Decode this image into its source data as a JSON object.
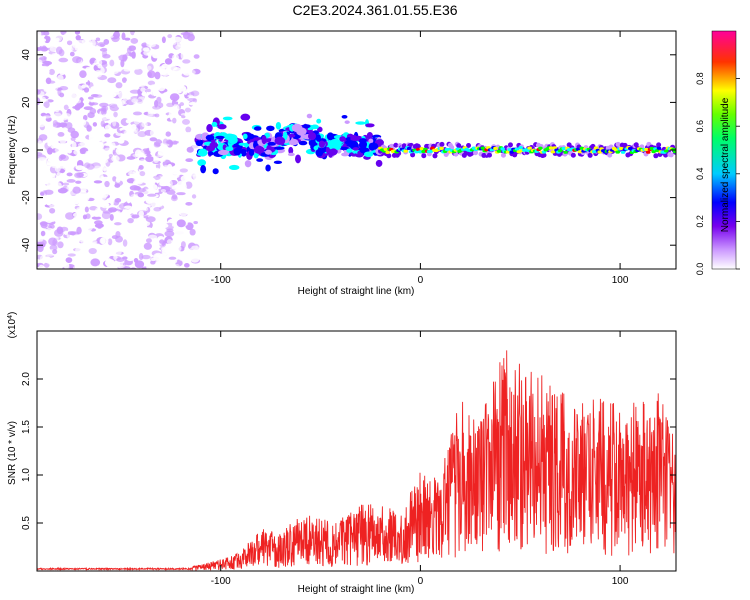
{
  "figure": {
    "title": "C2E3.2024.361.01.55.E36"
  },
  "chart_data": [
    {
      "type": "heatmap",
      "title": "",
      "xlabel": "Height of straight line (km)",
      "ylabel": "Frequency (Hz)",
      "xlim": [
        -192,
        128
      ],
      "ylim": [
        -50,
        50
      ],
      "xticks": [
        -100,
        0,
        100
      ],
      "yticks": [
        -40,
        -20,
        0,
        20,
        40
      ],
      "colorbar": {
        "label": "Normalized spectral amplitude",
        "range": [
          0,
          1
        ],
        "ticks": [
          0.0,
          0.2,
          0.4,
          0.6,
          0.8
        ],
        "colormap": [
          "#ffffff",
          "#cc99ff",
          "#6600ee",
          "#0000ff",
          "#00ffff",
          "#00ff00",
          "#ffff00",
          "#ff0000",
          "#ff0099"
        ]
      },
      "regions": [
        {
          "x": [
            -192,
            -112
          ],
          "y": [
            -50,
            50
          ],
          "amplitude": "low-scattered"
        },
        {
          "x": [
            -112,
            -20
          ],
          "y": [
            -18,
            14
          ],
          "amplitude": "medium"
        },
        {
          "x": [
            -20,
            128
          ],
          "y": [
            -2,
            2
          ],
          "amplitude": "high"
        }
      ],
      "grid": false
    },
    {
      "type": "line",
      "title": "",
      "xlabel": "Height of straight line (km)",
      "ylabel": "SNR (10 * v/v)",
      "yscale_label": "(x10^4)",
      "xlim": [
        -192,
        128
      ],
      "ylim": [
        0,
        2.5
      ],
      "xticks": [
        -100,
        0,
        100
      ],
      "yticks": [
        0.5,
        1.0,
        1.5,
        2.0
      ],
      "series": [
        {
          "color": "#ee2222",
          "envelope": {
            "x": [
              -192,
              -120,
              -100,
              -90,
              -80,
              -70,
              -60,
              -50,
              -40,
              -30,
              -20,
              -10,
              0,
              10,
              20,
              30,
              40,
              50,
              60,
              70,
              80,
              90,
              100,
              110,
              120,
              128
            ],
            "y": [
              0.02,
              0.03,
              0.12,
              0.2,
              0.45,
              0.4,
              0.6,
              0.55,
              0.55,
              0.7,
              0.7,
              0.6,
              1.05,
              1.0,
              1.8,
              1.55,
              2.4,
              2.15,
              2.05,
              1.9,
              1.75,
              1.85,
              1.7,
              1.85,
              1.9,
              1.5
            ]
          }
        }
      ],
      "grid": false
    }
  ]
}
